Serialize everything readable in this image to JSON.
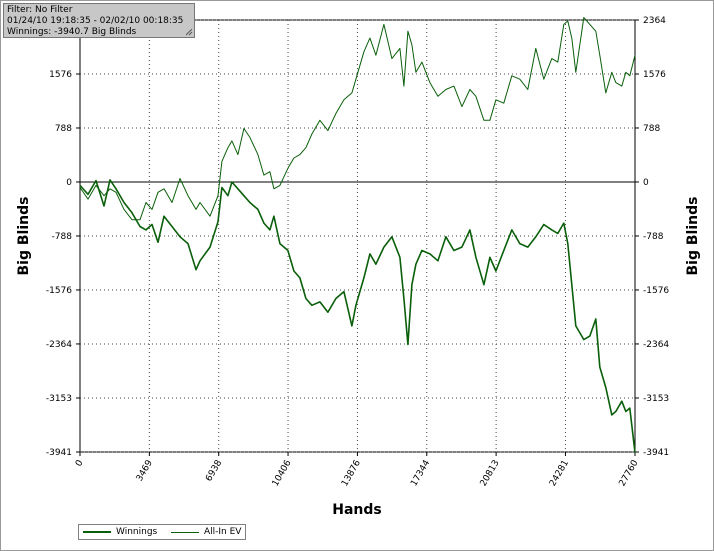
{
  "info": {
    "filter": "Filter: No Filter",
    "date_range": "01/24/10 19:18:35 - 02/02/10 00:18:35",
    "winnings": "Winnings: -3940.7 Big Blinds"
  },
  "chart_data": {
    "type": "line",
    "title": "",
    "xlabel": "Hands",
    "ylabel": "Big Blinds",
    "ylabel_right": "Big Blinds",
    "xlim": [
      0,
      27760
    ],
    "ylim": [
      -3941,
      2364
    ],
    "x_ticks": [
      0,
      3469,
      6938,
      10406,
      13876,
      17344,
      20813,
      24281,
      27760
    ],
    "y_ticks": [
      2364,
      1576,
      788,
      0,
      -788,
      -1576,
      -2364,
      -3153,
      -3941
    ],
    "grid": true,
    "legend_position": "bottom-left",
    "colors": {
      "winnings": "#0a5f0a",
      "allin_ev": "#0a5f0a",
      "zero_line": "#000000"
    },
    "series": [
      {
        "name": "Winnings",
        "x": [
          0,
          400,
          800,
          1200,
          1500,
          1800,
          2200,
          2600,
          3000,
          3300,
          3600,
          3900,
          4200,
          4600,
          5000,
          5400,
          5800,
          6000,
          6500,
          6900,
          7100,
          7400,
          7600,
          7900,
          8200,
          8500,
          8900,
          9200,
          9500,
          9700,
          10000,
          10400,
          10700,
          11000,
          11300,
          11600,
          12000,
          12400,
          12800,
          13200,
          13600,
          13800,
          14200,
          14500,
          14800,
          15200,
          15600,
          16000,
          16200,
          16400,
          16600,
          16800,
          17100,
          17500,
          17900,
          18300,
          18700,
          19100,
          19500,
          19800,
          20200,
          20500,
          20800,
          21200,
          21600,
          22000,
          22400,
          22800,
          23200,
          23600,
          23900,
          24200,
          24400,
          24600,
          24800,
          25200,
          25500,
          25800,
          26000,
          26300,
          26600,
          26800,
          27100,
          27300,
          27500,
          27760
        ],
        "y": [
          -50,
          -180,
          20,
          -350,
          30,
          -100,
          -300,
          -450,
          -650,
          -700,
          -620,
          -880,
          -500,
          -650,
          -800,
          -900,
          -1280,
          -1150,
          -950,
          -580,
          -80,
          -200,
          0,
          -100,
          -200,
          -300,
          -400,
          -600,
          -700,
          -500,
          -900,
          -1000,
          -1300,
          -1400,
          -1700,
          -1800,
          -1750,
          -1900,
          -1700,
          -1600,
          -2100,
          -1800,
          -1400,
          -1050,
          -1200,
          -950,
          -800,
          -1100,
          -1700,
          -2370,
          -1500,
          -1200,
          -1000,
          -1050,
          -1150,
          -800,
          -1000,
          -950,
          -700,
          -1100,
          -1500,
          -1100,
          -1300,
          -1000,
          -700,
          -900,
          -950,
          -800,
          -620,
          -700,
          -750,
          -600,
          -900,
          -1500,
          -2100,
          -2300,
          -2250,
          -2000,
          -2700,
          -3000,
          -3400,
          -3350,
          -3200,
          -3350,
          -3300,
          -3950
        ]
      },
      {
        "name": "All-In EV",
        "x": [
          0,
          400,
          800,
          1200,
          1500,
          1800,
          2200,
          2600,
          3000,
          3300,
          3600,
          3900,
          4200,
          4600,
          5000,
          5400,
          5800,
          6000,
          6500,
          6900,
          7100,
          7400,
          7600,
          7900,
          8200,
          8500,
          8900,
          9200,
          9500,
          9700,
          10000,
          10400,
          10700,
          11000,
          11300,
          11600,
          12000,
          12400,
          12800,
          13200,
          13600,
          13800,
          14200,
          14500,
          14800,
          15200,
          15600,
          16000,
          16200,
          16400,
          16600,
          16800,
          17100,
          17500,
          17900,
          18300,
          18700,
          19100,
          19500,
          19800,
          20200,
          20500,
          20800,
          21200,
          21600,
          22000,
          22400,
          22800,
          23200,
          23600,
          23900,
          24200,
          24400,
          24600,
          24800,
          25200,
          25500,
          25800,
          26000,
          26300,
          26600,
          26800,
          27100,
          27300,
          27500,
          27760
        ],
        "y": [
          -80,
          -250,
          -50,
          -200,
          -100,
          -150,
          -400,
          -550,
          -550,
          -300,
          -400,
          -150,
          -100,
          -300,
          50,
          -200,
          -400,
          -300,
          -500,
          -200,
          300,
          500,
          600,
          400,
          780,
          650,
          400,
          100,
          150,
          -100,
          -50,
          200,
          350,
          400,
          500,
          700,
          900,
          750,
          1000,
          1200,
          1300,
          1500,
          1900,
          2100,
          1850,
          2300,
          1800,
          1950,
          1400,
          2200,
          2000,
          1600,
          1750,
          1450,
          1250,
          1350,
          1400,
          1100,
          1350,
          1250,
          900,
          900,
          1200,
          1150,
          1550,
          1500,
          1350,
          1950,
          1500,
          1800,
          1750,
          2300,
          2350,
          2100,
          1600,
          2400,
          2300,
          2200,
          1850,
          1300,
          1600,
          1450,
          1400,
          1600,
          1550,
          1850
        ]
      }
    ]
  },
  "legend": [
    {
      "label": "Winnings"
    },
    {
      "label": "All-In EV"
    }
  ]
}
